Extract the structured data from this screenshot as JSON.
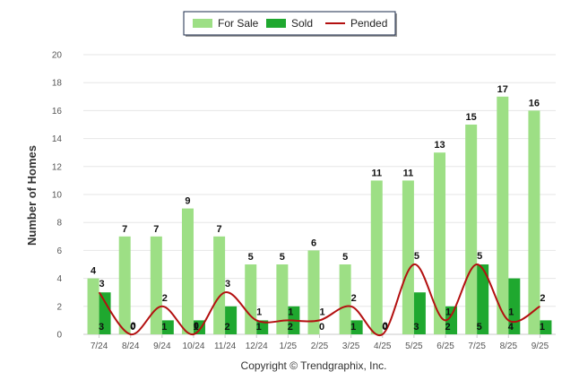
{
  "chart_data": {
    "type": "bar",
    "categories": [
      "7/24",
      "8/24",
      "9/24",
      "10/24",
      "11/24",
      "12/24",
      "1/25",
      "2/25",
      "3/25",
      "4/25",
      "5/25",
      "6/25",
      "7/25",
      "8/25",
      "9/25"
    ],
    "series": [
      {
        "name": "For Sale",
        "type": "bar",
        "color": "#9ddf85",
        "values": [
          4,
          7,
          7,
          9,
          7,
          5,
          5,
          6,
          5,
          11,
          11,
          13,
          15,
          17,
          16
        ]
      },
      {
        "name": "Sold",
        "type": "bar",
        "color": "#1fa82f",
        "values": [
          3,
          0,
          1,
          1,
          2,
          1,
          2,
          0,
          1,
          0,
          3,
          2,
          5,
          4,
          1
        ]
      },
      {
        "name": "Pended",
        "type": "line",
        "color": "#b31010",
        "values": [
          3,
          0,
          2,
          0,
          3,
          1,
          1,
          1,
          2,
          0,
          5,
          1,
          5,
          1,
          2
        ]
      }
    ],
    "ylabel": "Number of Homes",
    "xlabel": "",
    "ylim": [
      0,
      20
    ],
    "yticks": [
      0,
      2,
      4,
      6,
      8,
      10,
      12,
      14,
      16,
      18,
      20
    ],
    "legend_position": "top-center",
    "grid": true,
    "footer": "Copyright © Trendgraphix, Inc."
  }
}
